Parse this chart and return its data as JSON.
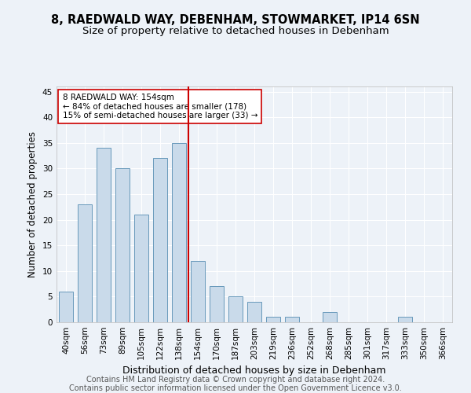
{
  "title1": "8, RAEDWALD WAY, DEBENHAM, STOWMARKET, IP14 6SN",
  "title2": "Size of property relative to detached houses in Debenham",
  "xlabel": "Distribution of detached houses by size in Debenham",
  "ylabel": "Number of detached properties",
  "categories": [
    "40sqm",
    "56sqm",
    "73sqm",
    "89sqm",
    "105sqm",
    "122sqm",
    "138sqm",
    "154sqm",
    "170sqm",
    "187sqm",
    "203sqm",
    "219sqm",
    "236sqm",
    "252sqm",
    "268sqm",
    "285sqm",
    "301sqm",
    "317sqm",
    "333sqm",
    "350sqm",
    "366sqm"
  ],
  "values": [
    6,
    23,
    34,
    30,
    21,
    32,
    35,
    12,
    7,
    5,
    4,
    1,
    1,
    0,
    2,
    0,
    0,
    0,
    1,
    0,
    0
  ],
  "bar_color": "#c9daea",
  "bar_edge_color": "#6899bb",
  "vline_color": "#cc0000",
  "annotation_text": "8 RAEDWALD WAY: 154sqm\n← 84% of detached houses are smaller (178)\n15% of semi-detached houses are larger (33) →",
  "annotation_box_color": "#ffffff",
  "annotation_box_edge": "#cc0000",
  "ylim": [
    0,
    46
  ],
  "yticks": [
    0,
    5,
    10,
    15,
    20,
    25,
    30,
    35,
    40,
    45
  ],
  "footer1": "Contains HM Land Registry data © Crown copyright and database right 2024.",
  "footer2": "Contains public sector information licensed under the Open Government Licence v3.0.",
  "bg_color": "#edf2f8",
  "plot_bg_color": "#edf2f8",
  "grid_color": "#ffffff",
  "title1_fontsize": 10.5,
  "title2_fontsize": 9.5,
  "xlabel_fontsize": 9,
  "ylabel_fontsize": 8.5,
  "tick_fontsize": 7.5,
  "footer_fontsize": 7,
  "annot_fontsize": 7.5
}
